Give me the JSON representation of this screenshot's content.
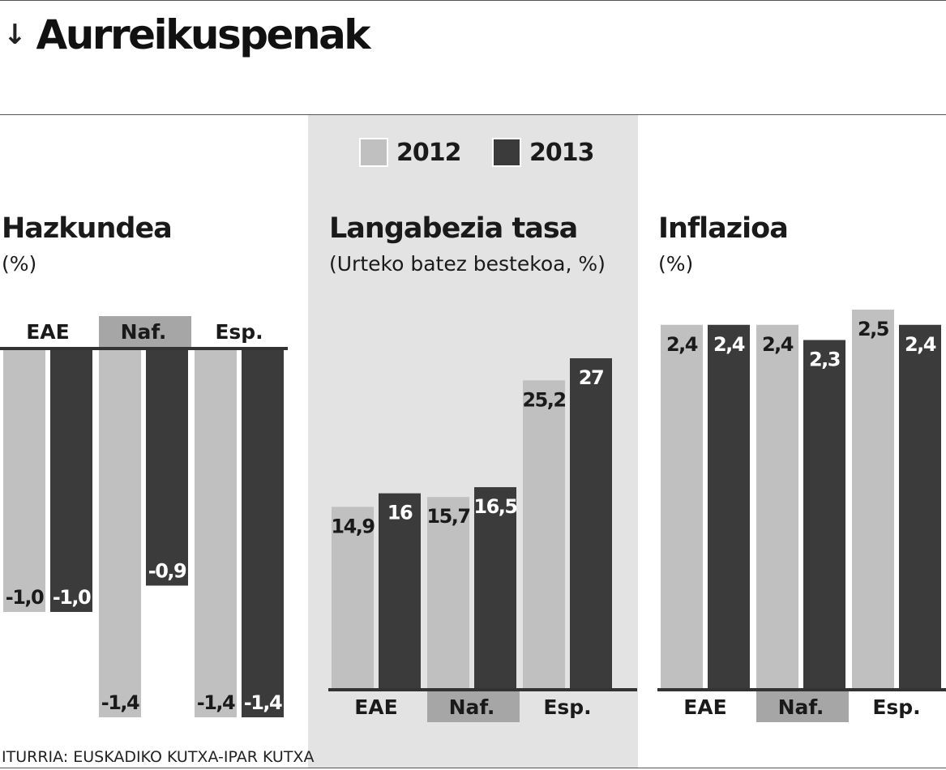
{
  "header": {
    "title": "Aurreikuspenak",
    "icon": "arrow-down-icon"
  },
  "legend": [
    {
      "label": "2012",
      "color": "#c0c0c0"
    },
    {
      "label": "2013",
      "color": "#3b3b3b"
    }
  ],
  "panels": {
    "growth": {
      "title": "Hazkundea",
      "subtitle": "(%)"
    },
    "unemployment": {
      "title": "Langabezia tasa",
      "subtitle": "(Urteko batez bestekoa, %)"
    },
    "inflation": {
      "title": "Inflazioa",
      "subtitle": "(%)"
    }
  },
  "source": "ITURRIA: EUSKADIKO KUTXA-IPAR KUTXA",
  "colors": {
    "light": "#c0c0c0",
    "dark": "#3b3b3b",
    "category_highlight": "#a6a6a6"
  },
  "chart_data": [
    {
      "type": "bar",
      "title": "Hazkundea",
      "subtitle": "(%)",
      "categories": [
        "EAE",
        "Naf.",
        "Esp."
      ],
      "series": [
        {
          "name": "2012",
          "values": [
            -1.0,
            -1.4,
            -1.4
          ],
          "labels": [
            "-1,0",
            "-1,4",
            "-1,4"
          ]
        },
        {
          "name": "2013",
          "values": [
            -1.0,
            -0.9,
            -1.4
          ],
          "labels": [
            "-1,0",
            "-0,9",
            "-1,4"
          ]
        }
      ],
      "ylim": [
        -1.4,
        0
      ],
      "grid": false
    },
    {
      "type": "bar",
      "title": "Langabezia tasa",
      "subtitle": "(Urteko batez bestekoa, %)",
      "categories": [
        "EAE",
        "Naf.",
        "Esp."
      ],
      "series": [
        {
          "name": "2012",
          "values": [
            14.9,
            15.7,
            25.2
          ],
          "labels": [
            "14,9",
            "15,7",
            "25,2"
          ]
        },
        {
          "name": "2013",
          "values": [
            16,
            16.5,
            27
          ],
          "labels": [
            "16",
            "16,5",
            "27"
          ]
        }
      ],
      "ylim": [
        0,
        27
      ],
      "grid": false
    },
    {
      "type": "bar",
      "title": "Inflazioa",
      "subtitle": "(%)",
      "categories": [
        "EAE",
        "Naf.",
        "Esp."
      ],
      "series": [
        {
          "name": "2012",
          "values": [
            2.4,
            2.4,
            2.5
          ],
          "labels": [
            "2,4",
            "2,4",
            "2,5"
          ]
        },
        {
          "name": "2013",
          "values": [
            2.4,
            2.3,
            2.4
          ],
          "labels": [
            "2,4",
            "2,3",
            "2,4"
          ]
        }
      ],
      "ylim": [
        0,
        2.5
      ],
      "grid": false
    }
  ]
}
